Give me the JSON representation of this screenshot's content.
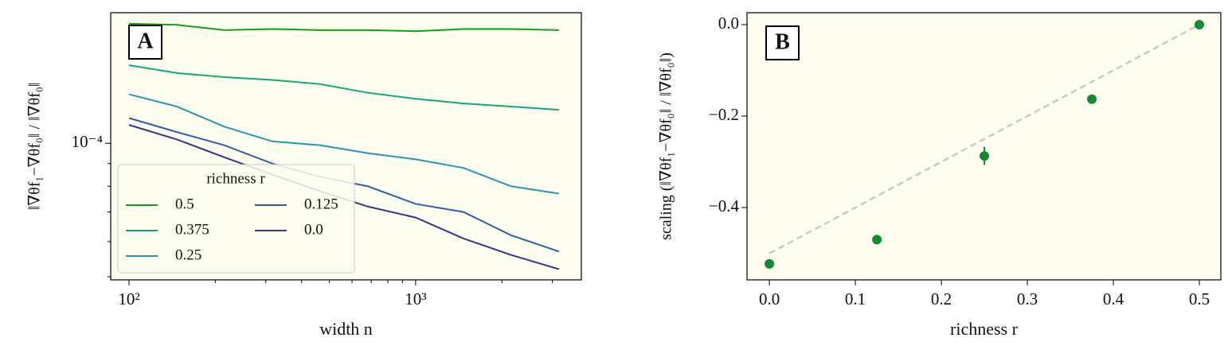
{
  "chart_data": [
    {
      "type": "line",
      "panel_label": "A",
      "xlabel": "width n",
      "ylabel": "‖∇θf₁−∇θf₀‖ / ‖∇θf₀‖",
      "x": [
        100,
        147,
        215,
        316,
        464,
        681,
        1000,
        1468,
        2154,
        3162
      ],
      "xscale": "log",
      "yscale": "log",
      "xlim": [
        86.3,
        3787
      ],
      "ylim": [
        4.92e-05,
        0.000197
      ],
      "xticks": [
        {
          "value": 100,
          "label": "10²"
        },
        {
          "value": 1000,
          "label": "10³"
        }
      ],
      "xticks_minor": [
        200,
        300,
        400,
        500,
        600,
        700,
        800,
        900,
        2000,
        3000
      ],
      "yticks": [
        {
          "value": 0.0001,
          "label": "10⁻⁴"
        }
      ],
      "yticks_minor": [
        5e-05,
        6e-05,
        7e-05,
        8e-05,
        9e-05
      ],
      "legend_title": "richness r",
      "legend": "lower left",
      "series": [
        {
          "name": "0.5",
          "color": "#1a9c1a",
          "values": [
            0.000186,
            0.000185,
            0.00018,
            0.000181,
            0.00018,
            0.00018,
            0.000179,
            0.000181,
            0.000181,
            0.00018
          ]
        },
        {
          "name": "0.375",
          "color": "#1fa37a",
          "values": [
            0.00015,
            0.000144,
            0.000141,
            0.000139,
            0.000136,
            0.00013,
            0.000126,
            0.000123,
            0.000121,
            0.000119
          ]
        },
        {
          "name": "0.25",
          "color": "#2896b0",
          "values": [
            0.000129,
            0.000121,
            0.000109,
            0.000101,
            9.9e-05,
            9.5e-05,
            9.2e-05,
            8.8e-05,
            8e-05,
            7.7e-05
          ]
        },
        {
          "name": "0.125",
          "color": "#2f5ea8",
          "values": [
            0.000114,
            0.000106,
            9.9e-05,
            9e-05,
            8.4e-05,
            8e-05,
            7.3e-05,
            7e-05,
            6.2e-05,
            5.7e-05
          ]
        },
        {
          "name": "0.0",
          "color": "#3b2f8f",
          "values": [
            0.00011,
            0.000102,
            9.3e-05,
            8.5e-05,
            7.8e-05,
            7.2e-05,
            6.8e-05,
            6.1e-05,
            5.6e-05,
            5.2e-05
          ]
        }
      ]
    },
    {
      "type": "scatter",
      "panel_label": "B",
      "xlabel": "richness r",
      "ylabel": "scaling (‖∇θf₁−∇θf₀‖ / ‖∇θf₀‖)",
      "x": [
        0,
        0.125,
        0.25,
        0.375,
        0.5
      ],
      "values": [
        -0.523,
        -0.47,
        -0.287,
        -0.163,
        0.0
      ],
      "errors": [
        0.006,
        0.006,
        0.02,
        0.006,
        0.004
      ],
      "color": "#158a2e",
      "fit": {
        "x": [
          0,
          0.5
        ],
        "values": [
          -0.5,
          0.0
        ],
        "color": "#c8c8c8"
      },
      "xlim": [
        -0.026,
        0.525
      ],
      "ylim": [
        -0.558,
        0.026
      ],
      "xticks": [
        {
          "value": 0,
          "label": "0.0"
        },
        0.1,
        0.2,
        0.3,
        0.4,
        0.5
      ],
      "yticks": [
        {
          "value": 0,
          "label": "0.0"
        },
        {
          "value": -0.2,
          "label": "−0.2"
        },
        {
          "value": -0.4,
          "label": "−0.4"
        }
      ]
    }
  ]
}
